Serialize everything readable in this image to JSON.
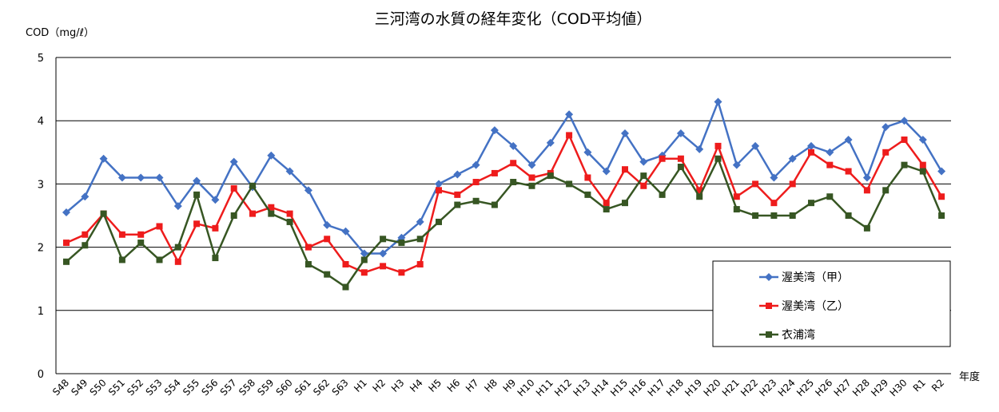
{
  "chart_data": {
    "type": "line",
    "title": "三河湾の水質の経年変化（COD平均値）",
    "ylabel": "COD（mg/ℓ）",
    "xlabel": "年度",
    "ylim": [
      0,
      5
    ],
    "yticks": [
      "0",
      "1",
      "2",
      "3",
      "4",
      "5"
    ],
    "grid": true,
    "legend_position": "bottom-right",
    "categories": [
      "S48",
      "S49",
      "S50",
      "S51",
      "S52",
      "S53",
      "S54",
      "S55",
      "S56",
      "S57",
      "S58",
      "S59",
      "S60",
      "S61",
      "S62",
      "S63",
      "H1",
      "H2",
      "H3",
      "H4",
      "H5",
      "H6",
      "H7",
      "H8",
      "H9",
      "H10",
      "H11",
      "H12",
      "H13",
      "H14",
      "H15",
      "H16",
      "H17",
      "H18",
      "H19",
      "H20",
      "H21",
      "H22",
      "H23",
      "H24",
      "H25",
      "H26",
      "H27",
      "H28",
      "H29",
      "H30",
      "R1",
      "R2"
    ],
    "series": [
      {
        "name": "渥美湾（甲）",
        "color": "#4472C4",
        "marker": "diamond",
        "values": [
          2.55,
          2.8,
          3.4,
          3.1,
          3.1,
          3.1,
          2.65,
          3.05,
          2.75,
          3.35,
          2.95,
          3.45,
          3.2,
          2.9,
          2.35,
          2.25,
          1.9,
          1.9,
          2.15,
          2.4,
          3.0,
          3.15,
          3.3,
          3.85,
          3.6,
          3.3,
          3.65,
          4.1,
          3.5,
          3.2,
          3.8,
          3.35,
          3.45,
          3.8,
          3.55,
          4.3,
          3.3,
          3.6,
          3.1,
          3.4,
          3.6,
          3.5,
          3.7,
          3.1,
          3.9,
          4.0,
          3.7,
          3.2
        ]
      },
      {
        "name": "渥美湾（乙）",
        "color": "#EE1C1C",
        "marker": "square",
        "values": [
          2.07,
          2.2,
          2.53,
          2.2,
          2.2,
          2.33,
          1.77,
          2.37,
          2.3,
          2.93,
          2.53,
          2.63,
          2.53,
          2.0,
          2.13,
          1.73,
          1.6,
          1.7,
          1.6,
          1.73,
          2.9,
          2.83,
          3.03,
          3.17,
          3.33,
          3.1,
          3.17,
          3.77,
          3.1,
          2.7,
          3.23,
          2.97,
          3.4,
          3.4,
          2.9,
          3.6,
          2.8,
          3.0,
          2.7,
          3.0,
          3.5,
          3.3,
          3.2,
          2.9,
          3.5,
          3.7,
          3.3,
          2.8
        ]
      },
      {
        "name": "衣浦湾",
        "color": "#375623",
        "marker": "square",
        "values": [
          1.77,
          2.03,
          2.53,
          1.8,
          2.07,
          1.8,
          2.0,
          2.83,
          1.83,
          2.5,
          2.97,
          2.53,
          2.4,
          1.73,
          1.57,
          1.37,
          1.8,
          2.13,
          2.07,
          2.13,
          2.4,
          2.67,
          2.73,
          2.67,
          3.03,
          2.97,
          3.13,
          3.0,
          2.83,
          2.6,
          2.7,
          3.13,
          2.83,
          3.27,
          2.8,
          3.4,
          2.6,
          2.5,
          2.5,
          2.5,
          2.7,
          2.8,
          2.5,
          2.3,
          2.9,
          3.3,
          3.2,
          2.5
        ]
      }
    ]
  }
}
